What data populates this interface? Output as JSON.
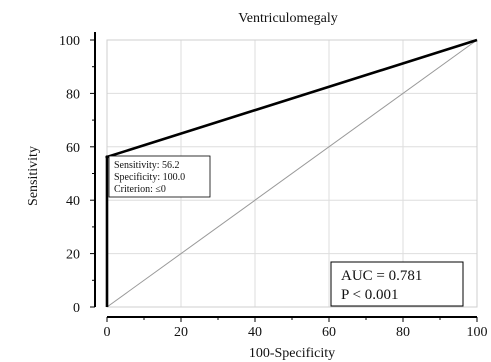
{
  "chart_data": {
    "type": "line",
    "title": "Ventriculomegaly",
    "xlabel": "100-Specificity",
    "ylabel": "Sensitivity",
    "xlim": [
      0,
      100
    ],
    "ylim": [
      0,
      100
    ],
    "x_ticks": [
      "0",
      "20",
      "40",
      "60",
      "80",
      "100"
    ],
    "y_ticks": [
      "0",
      "20",
      "40",
      "60",
      "80",
      "100"
    ],
    "grid": true,
    "series": [
      {
        "x": [
          0,
          0,
          100
        ],
        "y": [
          0,
          56.2,
          100
        ],
        "color": "#000000"
      },
      {
        "x": [
          0,
          100
        ],
        "y": [
          0,
          100
        ],
        "color": "#999999"
      }
    ],
    "annotation": {
      "lines": [
        "Sensitivity: 56.2",
        "Specificity: 100.0",
        "Criterion: ≤0"
      ],
      "point": {
        "x": 0,
        "y": 56.2
      }
    },
    "stats": {
      "auc": "AUC = 0.781",
      "p": "P < 0.001"
    }
  }
}
